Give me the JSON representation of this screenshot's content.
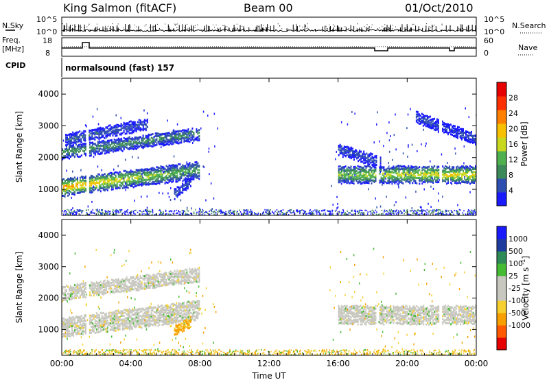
{
  "header": {
    "station": "King Salmon (fitACF)",
    "beam": "Beam 00",
    "date": "01/Oct/2010"
  },
  "left_labels": {
    "nsky": "N.Sky",
    "freq": "Freq.",
    "freq_unit": "[MHz]",
    "cpid": "CPID"
  },
  "right_labels": {
    "nsearch": "N.Search",
    "nave": "Nave"
  },
  "top_panel_ticks": {
    "noise_left": [
      "10^5",
      "10^0"
    ],
    "noise_right": [
      "10^5",
      "10^0"
    ],
    "freq_left": [
      "18",
      "8"
    ],
    "nave_right": [
      "60",
      "0"
    ]
  },
  "cpid_text": "normalsound (fast) 157",
  "colors": {
    "power": [
      "#1a1aff",
      "#2f4fb0",
      "#3c8a5a",
      "#4fb04f",
      "#c8d81e",
      "#f7c000",
      "#ff8000",
      "#ff3000",
      "#e60000"
    ],
    "velocity": [
      "#e60000",
      "#ff5a00",
      "#f7a000",
      "#f5d030",
      "#c8c8c0",
      "#c8c8c0",
      "#44bb33",
      "#2e8b57",
      "#1e3c9e",
      "#1a1aff"
    ]
  },
  "chart_data": [
    {
      "type": "heatmap",
      "name_printed": "",
      "quantity": "Power",
      "colorbar_label": "Power [dB]",
      "colorbar_ticks": [
        "4",
        "8",
        "12",
        "16",
        "20",
        "24",
        "28"
      ],
      "colorbar_range": [
        0,
        32
      ],
      "xlabel": "",
      "ylabel": "Slant Range [km]",
      "x_ticks": [
        "00:00",
        "04:00",
        "08:00",
        "12:00",
        "16:00",
        "20:00",
        "00:00"
      ],
      "xlim_hours": [
        0,
        24
      ],
      "y_ticks": [
        "1000",
        "2000",
        "3000",
        "4000"
      ],
      "ylim": [
        180,
        4500
      ],
      "features": [
        {
          "t_start": 0.0,
          "t_end": 8.0,
          "range_start": 1100,
          "range_end": 1650,
          "power": [
            26,
            12
          ],
          "thickness": 260
        },
        {
          "t_start": 0.0,
          "t_end": 8.0,
          "range_start": 2200,
          "range_end": 2800,
          "power": [
            12,
            10
          ],
          "thickness": 200
        },
        {
          "t_start": 0.2,
          "t_end": 5.0,
          "range_start": 2600,
          "range_end": 3100,
          "power": [
            8,
            6
          ],
          "thickness": 160
        },
        {
          "t_start": 6.5,
          "t_end": 7.5,
          "range_start": 900,
          "range_end": 1300,
          "power": [
            6,
            6
          ],
          "thickness": 150
        },
        {
          "t_start": 16.0,
          "t_end": 24.0,
          "range_start": 1500,
          "range_end": 1500,
          "power": [
            16,
            22
          ],
          "thickness": 260
        },
        {
          "t_start": 16.0,
          "t_end": 18.5,
          "range_start": 2300,
          "range_end": 1900,
          "power": [
            6,
            6
          ],
          "thickness": 180
        },
        {
          "t_start": 20.5,
          "t_end": 24.0,
          "range_start": 3300,
          "range_end": 2600,
          "power": [
            6,
            6
          ],
          "thickness": 160
        }
      ],
      "gaps_hours": [
        [
          1.4,
          1.55
        ],
        [
          18.2,
          18.35
        ],
        [
          21.8,
          21.95
        ]
      ]
    },
    {
      "type": "heatmap",
      "name_printed": "",
      "quantity": "Velocity",
      "colorbar_label": "Velocity [m s^-1]",
      "colorbar_ticks": [
        "1000",
        "500",
        "100",
        "25",
        "-25",
        "-100",
        "-500",
        "-1000"
      ],
      "xlabel": "Time UT",
      "ylabel": "Slant Range [km]",
      "x_ticks": [
        "00:00",
        "04:00",
        "08:00",
        "12:00",
        "16:00",
        "20:00",
        "00:00"
      ],
      "xlim_hours": [
        0,
        24
      ],
      "y_ticks": [
        "1000",
        "2000",
        "3000",
        "4000"
      ],
      "ylim": [
        180,
        4500
      ],
      "dominant_velocity": "-25 to 25 (grey)",
      "features": [
        {
          "t_start": 0.0,
          "t_end": 8.0,
          "range_start": 1100,
          "range_end": 1650,
          "velocity": 0,
          "thickness": 300
        },
        {
          "t_start": 0.0,
          "t_end": 8.0,
          "range_start": 2200,
          "range_end": 2800,
          "velocity": 0,
          "thickness": 220
        },
        {
          "t_start": 6.5,
          "t_end": 7.5,
          "range_start": 1000,
          "range_end": 1300,
          "velocity": -200,
          "thickness": 150
        },
        {
          "t_start": 16.0,
          "t_end": 24.0,
          "range_start": 1500,
          "range_end": 1500,
          "velocity": 0,
          "thickness": 280
        }
      ]
    }
  ]
}
